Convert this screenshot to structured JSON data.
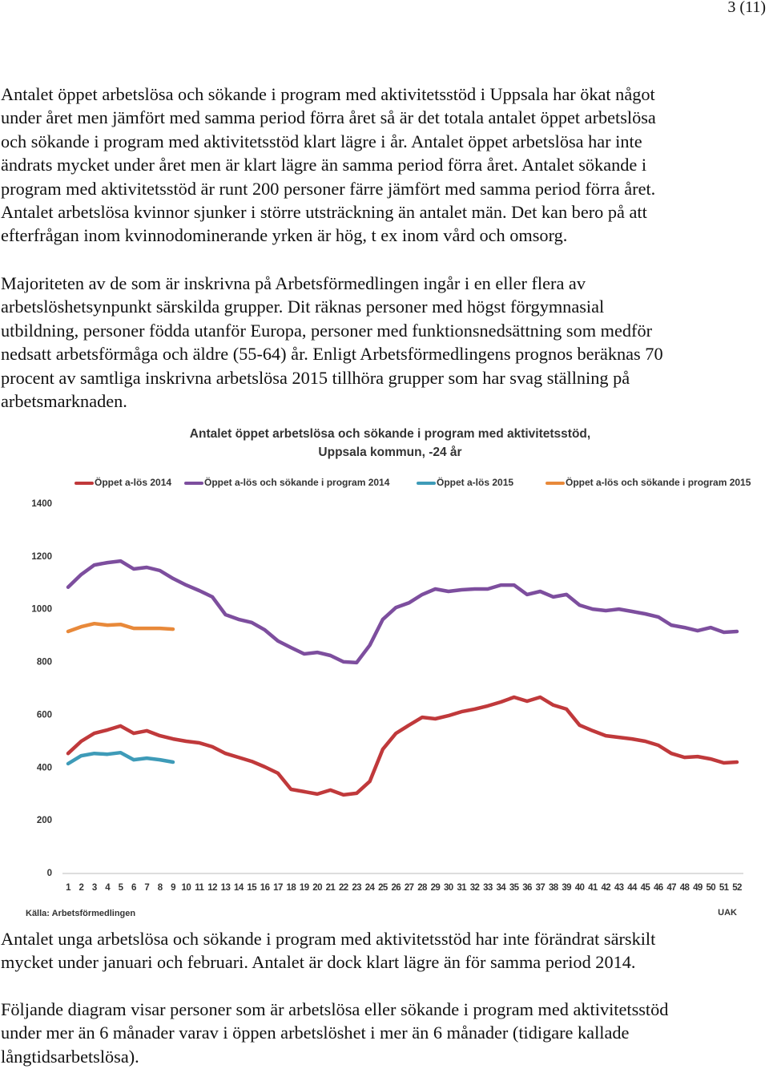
{
  "page_number": "3 (11)",
  "paragraphs_before": [
    {
      "lines": [
        "Antalet öppet arbetslösa och sökande i program med aktivitetsstöd i Uppsala har ökat något",
        "under året men jämfört med samma period förra året så är det totala antalet öppet arbetslösa",
        "och sökande i program med aktivitetsstöd klart lägre i år. Antalet öppet arbetslösa har inte",
        "ändrats mycket under året men är klart lägre än samma period förra året. Antalet sökande i",
        "program med aktivitetsstöd är runt 200 personer färre jämfört med samma period förra året.",
        "Antalet arbetslösa kvinnor sjunker i större utsträckning än antalet män. Det kan bero på att",
        "efterfrågan inom kvinnodominerande yrken är hög, t ex inom vård och omsorg."
      ]
    },
    {
      "lines": [
        "Majoriteten av de som är inskrivna på Arbetsförmedlingen ingår i en eller flera av",
        "arbetslöshetsynpunkt särskilda grupper. Dit räknas personer med högst förgymnasial",
        "utbildning, personer födda utanför Europa, personer med funktionsnedsättning som medför",
        "nedsatt arbetsförmåga och äldre (55-64) år. Enligt Arbetsförmedlingens prognos beräknas 70",
        "procent av samtliga inskrivna arbetslösa 2015 tillhöra grupper som har svag ställning på",
        "arbetsmarknaden."
      ]
    }
  ],
  "chart_data": {
    "type": "line",
    "title_lines": [
      "Antalet öppet arbetslösa och sökande i program med aktivitetsstöd,",
      "Uppsala kommun, -24 år"
    ],
    "x": [
      1,
      2,
      3,
      4,
      5,
      6,
      7,
      8,
      9,
      10,
      11,
      12,
      13,
      14,
      15,
      16,
      17,
      18,
      19,
      20,
      21,
      22,
      23,
      24,
      25,
      26,
      27,
      28,
      29,
      30,
      31,
      32,
      33,
      34,
      35,
      36,
      37,
      38,
      39,
      40,
      41,
      42,
      43,
      44,
      45,
      46,
      47,
      48,
      49,
      50,
      51,
      52
    ],
    "xlim": [
      1,
      52
    ],
    "ylim": [
      0,
      1400
    ],
    "yticks": [
      0,
      200,
      400,
      600,
      800,
      1000,
      1200,
      1400
    ],
    "grid": false,
    "series": [
      {
        "name": "Öppet a-lös 2014",
        "color": "#c0393b",
        "values": [
          455,
          501,
          531,
          544,
          559,
          531,
          541,
          522,
          510,
          501,
          495,
          480,
          455,
          440,
          425,
          404,
          380,
          319,
          310,
          301,
          316,
          298,
          304,
          349,
          471,
          531,
          562,
          592,
          586,
          598,
          613,
          623,
          635,
          650,
          668,
          653,
          668,
          638,
          623,
          562,
          541,
          522,
          516,
          510,
          501,
          486,
          455,
          440,
          443,
          434,
          419,
          422
        ]
      },
      {
        "name": "Öppet a-lös och sökande i program 2014",
        "color": "#7d4e9e",
        "values": [
          1085,
          1133,
          1169,
          1178,
          1184,
          1154,
          1160,
          1148,
          1118,
          1093,
          1072,
          1048,
          981,
          963,
          951,
          923,
          881,
          856,
          832,
          838,
          826,
          802,
          799,
          865,
          963,
          1008,
          1026,
          1057,
          1078,
          1069,
          1075,
          1078,
          1078,
          1093,
          1093,
          1057,
          1069,
          1048,
          1057,
          1017,
          1002,
          996,
          1002,
          993,
          984,
          972,
          941,
          932,
          920,
          932,
          914,
          917
        ]
      },
      {
        "name": "Öppet a-lös 2015",
        "color": "#3e9bb8",
        "values": [
          416,
          446,
          455,
          452,
          458,
          431,
          437,
          431,
          422,
          null,
          null,
          null,
          null,
          null,
          null,
          null,
          null,
          null,
          null,
          null,
          null,
          null,
          null,
          null,
          null,
          null,
          null,
          null,
          null,
          null,
          null,
          null,
          null,
          null,
          null,
          null,
          null,
          null,
          null,
          null,
          null,
          null,
          null,
          null,
          null,
          null,
          null,
          null,
          null,
          null,
          null,
          null
        ]
      },
      {
        "name": "Öppet a-lös och sökande i program 2015",
        "color": "#e8893a",
        "values": [
          917,
          935,
          947,
          941,
          944,
          929,
          929,
          929,
          926,
          null,
          null,
          null,
          null,
          null,
          null,
          null,
          null,
          null,
          null,
          null,
          null,
          null,
          null,
          null,
          null,
          null,
          null,
          null,
          null,
          null,
          null,
          null,
          null,
          null,
          null,
          null,
          null,
          null,
          null,
          null,
          null,
          null,
          null,
          null,
          null,
          null,
          null,
          null,
          null,
          null,
          null,
          null
        ]
      }
    ],
    "source": "Källa: Arbetsförmedlingen",
    "credit": "UAK"
  },
  "paragraphs_after": [
    {
      "lines": [
        "Antalet unga arbetslösa och sökande i program med aktivitetsstöd har inte förändrat särskilt",
        "mycket under januari och februari. Antalet är dock klart lägre än för samma period 2014."
      ]
    },
    {
      "lines": [
        "Följande diagram visar personer som är arbetslösa eller sökande i program med aktivitetsstöd",
        "under mer än 6 månader varav i öppen arbetslöshet i mer än 6 månader (tidigare kallade",
        "långtidsarbetslösa)."
      ]
    }
  ]
}
